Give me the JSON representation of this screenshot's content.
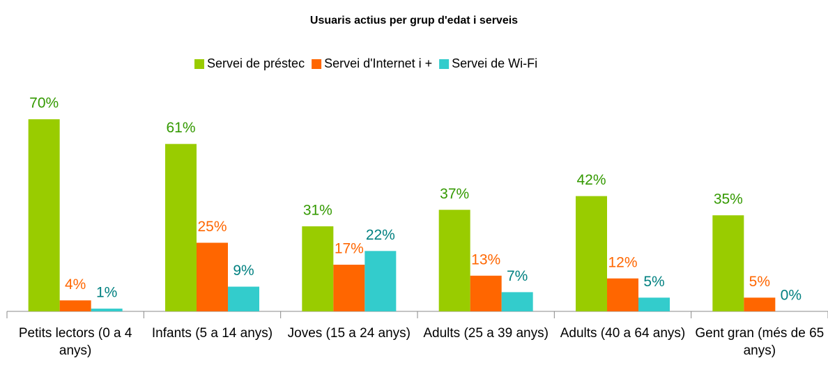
{
  "chart_data": {
    "type": "bar",
    "title": "Usuaris actius per grup d'edat i serveis",
    "categories": [
      "Petits lectors (0 a 4 anys)",
      "Infants (5 a 14 anys)",
      "Joves (15 a 24 anys)",
      "Adults (25 a 39 anys)",
      "Adults (40 a 64 anys)",
      "Gent gran (més de 65 anys)"
    ],
    "series": [
      {
        "name": "Servei de préstec",
        "color": "#99cc00",
        "label_color": "#339900",
        "values": [
          70,
          61,
          31,
          37,
          42,
          35
        ],
        "value_labels": [
          "70%",
          "61%",
          "31%",
          "37%",
          "42%",
          "35%"
        ]
      },
      {
        "name": "Servei d'Internet i +",
        "color": "#ff6600",
        "label_color": "#ff6600",
        "values": [
          4,
          25,
          17,
          13,
          12,
          5
        ],
        "value_labels": [
          "4%",
          "25%",
          "17%",
          "13%",
          "12%",
          "5%"
        ]
      },
      {
        "name": "Servei de Wi-Fi",
        "color": "#33cccc",
        "label_color": "#008080",
        "values": [
          1,
          9,
          22,
          7,
          5,
          0
        ],
        "value_labels": [
          "1%",
          "9%",
          "22%",
          "7%",
          "5%",
          "0%"
        ]
      }
    ],
    "legend": "top"
  }
}
